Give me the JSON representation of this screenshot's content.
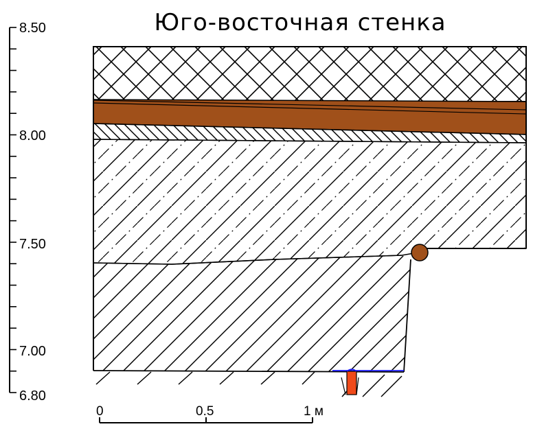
{
  "title": "Юго-восточная стенка",
  "elevation_scale": {
    "labels": [
      "8.50",
      "8.00",
      "7.50",
      "7.00",
      "6.80"
    ]
  },
  "horizontal_scale": {
    "labels": [
      "0",
      "0.5",
      "1 м"
    ]
  },
  "colors": {
    "brown_layer": "#a0501a",
    "pit_fill": "#f04a1a",
    "blue_line": "#1a1aff",
    "line": "#000000"
  }
}
